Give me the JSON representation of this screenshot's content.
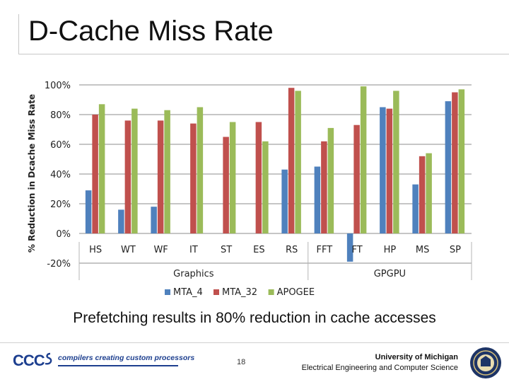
{
  "slide": {
    "title": "D-Cache Miss Rate",
    "caption": "Prefetching results in 80% reduction in cache accesses",
    "page_number": "18",
    "footer_logo": "CCC",
    "footer_tagline": "compilers creating custom processors",
    "university_line1": "University of Michigan",
    "university_line2": "Electrical Engineering and Computer Science"
  },
  "chart_data": {
    "type": "bar",
    "title": "",
    "xlabel": "",
    "ylabel": "% Reduction in Dcache Miss Rate",
    "ylim": [
      -20,
      100
    ],
    "yticks": [
      "100%",
      "80%",
      "60%",
      "40%",
      "20%",
      "0%",
      "-20%"
    ],
    "grid": true,
    "legend_position": "bottom",
    "categories": [
      "HS",
      "WT",
      "WF",
      "IT",
      "ST",
      "ES",
      "RS",
      "FFT",
      "FT",
      "HP",
      "MS",
      "SP"
    ],
    "groups": [
      {
        "label": "Graphics",
        "from": 0,
        "to": 6
      },
      {
        "label": "GPGPU",
        "from": 7,
        "to": 11
      }
    ],
    "series": [
      {
        "name": "MTA_4",
        "color": "#4f81bd",
        "values": [
          29,
          16,
          18,
          0,
          0,
          0,
          43,
          45,
          -19,
          85,
          33,
          89
        ]
      },
      {
        "name": "MTA_32",
        "color": "#c0504d",
        "values": [
          80,
          76,
          76,
          74,
          65,
          75,
          98,
          62,
          73,
          84,
          52,
          95
        ]
      },
      {
        "name": "APOGEE",
        "color": "#9bbb59",
        "values": [
          87,
          84,
          83,
          85,
          75,
          62,
          96,
          71,
          99,
          96,
          54,
          97
        ]
      }
    ]
  }
}
